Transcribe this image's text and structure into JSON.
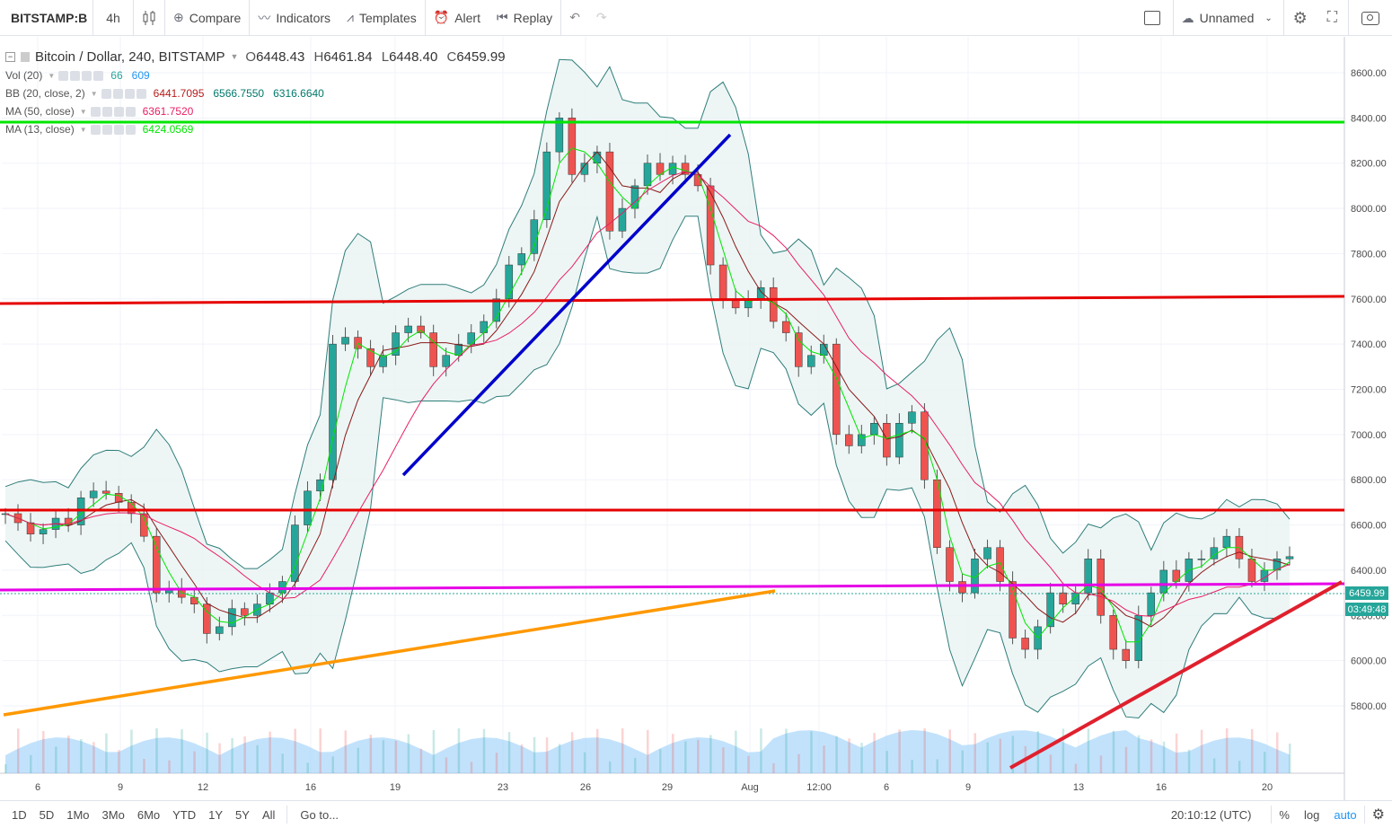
{
  "toolbar": {
    "symbol": "BITSTAMP:B",
    "interval": "4h",
    "compare": "Compare",
    "indicators": "Indicators",
    "templates": "Templates",
    "alert": "Alert",
    "replay": "Replay",
    "layout_name": "Unnamed"
  },
  "legend": {
    "title": "Bitcoin / Dollar, 240, BITSTAMP",
    "open": "6448.43",
    "high": "6461.84",
    "low": "6448.40",
    "close": "6459.99",
    "o_label": "O",
    "h_label": "H",
    "l_label": "L",
    "c_label": "C",
    "indicators": [
      {
        "name": "Vol (20)",
        "values": [
          "66",
          "609"
        ],
        "colors": [
          "#26a69a",
          "#2196f3"
        ]
      },
      {
        "name": "BB (20, close, 2)",
        "values": [
          "6441.7095",
          "6566.7550",
          "6316.6640"
        ],
        "colors": [
          "#b71c1c",
          "#00796b",
          "#00796b"
        ]
      },
      {
        "name": "MA (50, close)",
        "values": [
          "6361.7520"
        ],
        "colors": [
          "#e91e63"
        ]
      },
      {
        "name": "MA (13, close)",
        "values": [
          "6424.0569"
        ],
        "colors": [
          "#00e600"
        ]
      }
    ]
  },
  "price_axis": {
    "labels": [
      "8600.00",
      "8400.00",
      "8200.00",
      "8000.00",
      "7800.00",
      "7600.00",
      "7400.00",
      "7200.00",
      "7000.00",
      "6800.00",
      "6600.00",
      "6400.00",
      "6200.00",
      "6000.00",
      "5800.00"
    ],
    "last_price": "6459.99",
    "countdown": "03:49:48"
  },
  "time_axis": {
    "labels": [
      "6",
      "9",
      "12",
      "16",
      "19",
      "23",
      "26",
      "29",
      "Aug",
      "12:00",
      "6",
      "9",
      "13",
      "16",
      "20"
    ]
  },
  "colors": {
    "up": "#26a69a",
    "down": "#ef5350",
    "bb_fill": "#e8f4f3",
    "hline_green": "#00e600",
    "hline_red": "#e60000",
    "hline_magenta": "#e600e6",
    "trend_blue": "#0000cc",
    "trend_orange": "#ff9800",
    "trend_red": "#e0202e",
    "volume": "#90caf9"
  },
  "chart_data": {
    "type": "candlestick",
    "title": "Bitcoin / Dollar, 240, BITSTAMP",
    "y_range": [
      5750,
      8650
    ],
    "horizontal_lines": [
      8390,
      7660,
      6800,
      6480,
      6500
    ],
    "close_series_approx": [
      6650,
      6610,
      6560,
      6580,
      6630,
      6600,
      6720,
      6750,
      6740,
      6700,
      6650,
      6550,
      6300,
      6320,
      6280,
      6250,
      6120,
      6150,
      6230,
      6200,
      6250,
      6300,
      6350,
      6600,
      6750,
      6800,
      7400,
      7430,
      7380,
      7300,
      7350,
      7450,
      7480,
      7450,
      7300,
      7350,
      7400,
      7450,
      7500,
      7600,
      7750,
      7800,
      7950,
      8250,
      8400,
      8150,
      8200,
      8250,
      7900,
      8000,
      8100,
      8200,
      8150,
      8200,
      8150,
      8100,
      7750,
      7600,
      7560,
      7600,
      7650,
      7500,
      7450,
      7300,
      7350,
      7400,
      7000,
      6950,
      7000,
      7050,
      6900,
      7050,
      7100,
      6800,
      6500,
      6350,
      6300,
      6450,
      6500,
      6350,
      6100,
      6050,
      6150,
      6300,
      6250,
      6300,
      6450,
      6200,
      6050,
      6000,
      6200,
      6300,
      6400,
      6350,
      6450,
      6450,
      6500,
      6550,
      6450,
      6350,
      6400,
      6450,
      6460
    ]
  },
  "bottombar": {
    "ranges": [
      "1D",
      "5D",
      "1Mo",
      "3Mo",
      "6Mo",
      "YTD",
      "1Y",
      "5Y",
      "All"
    ],
    "goto": "Go to...",
    "clock": "20:10:12 (UTC)",
    "pct": "%",
    "log": "log",
    "auto": "auto"
  }
}
